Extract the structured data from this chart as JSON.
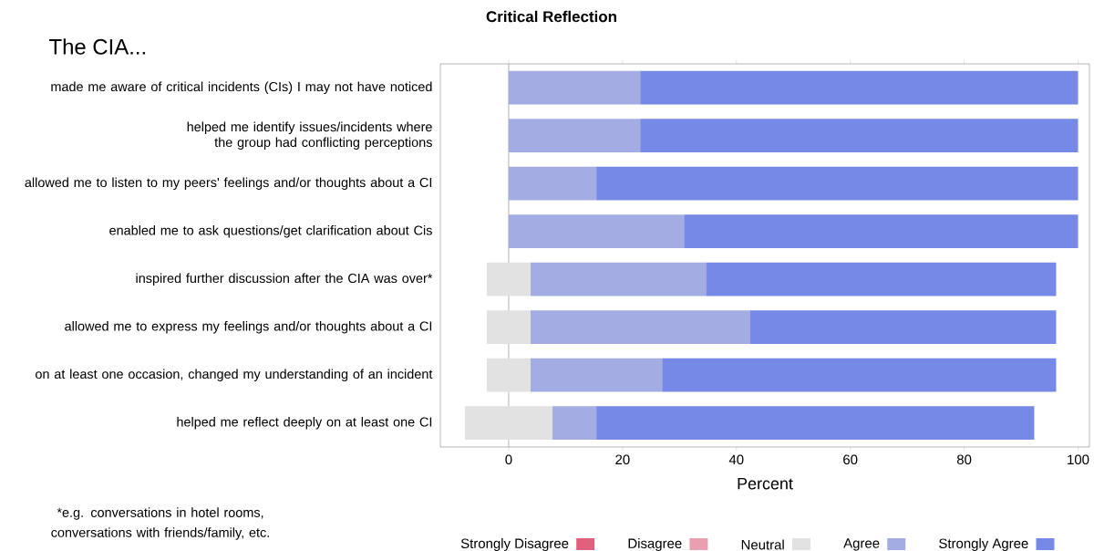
{
  "chart_data": {
    "type": "bar",
    "orientation": "horizontal",
    "stacked": true,
    "title": "Critical Reflection",
    "xlabel": "Percent",
    "annotations": [
      "The CIA...",
      "*e.g. conversations in hotel rooms, conversations with friends/family, etc."
    ],
    "categories": [
      "made me aware of critical incidents (CIs) I may not have noticed",
      "helped me identify issues/incidents where the group had conflicting perceptions",
      "allowed me to listen to my peers' feelings and/or thoughts about a CI",
      "enabled me to ask questions/get clarification about Cis",
      "inspired further discussion after the CIA was over*",
      "allowed me to express my feelings and/or thoughts about a CI",
      "on at least one occasion, changed my understanding of an incident",
      "helped me reflect deeply on at least one CI"
    ],
    "series": [
      {
        "name": "Strongly Disagree",
        "color": "#e0607e",
        "values": [
          0,
          0,
          0,
          0,
          0,
          0,
          0,
          0
        ]
      },
      {
        "name": "Disagree",
        "color": "#e8a0b0",
        "values": [
          0,
          0,
          0,
          0,
          0,
          0,
          0,
          0
        ]
      },
      {
        "name": "Neutral",
        "color": "#e2e2e2",
        "values": [
          0,
          0,
          0,
          0,
          -3.85,
          -3.85,
          -3.85,
          -7.7
        ]
      },
      {
        "color": "#e2e2e2",
        "values": [
          0,
          0,
          0,
          0,
          3.85,
          3.85,
          3.85,
          7.7
        ]
      },
      {
        "name": "Agree",
        "color": "#a3ade4",
        "values": [
          23.1,
          23.1,
          15.4,
          30.8,
          30.8,
          38.5,
          23.1,
          7.7
        ]
      },
      {
        "name": "Strongly Agree",
        "color": "#7689e6",
        "values": [
          76.9,
          76.9,
          84.6,
          69.2,
          61.5,
          53.8,
          69.2,
          76.9
        ]
      }
    ],
    "xlim": [
      -12,
      102
    ],
    "xticks": [
      0,
      20,
      40,
      60,
      80,
      100
    ],
    "ref_lines": [
      {
        "axis": "x",
        "value": 0,
        "color": "#a0a0a0"
      }
    ],
    "legend": "bottom"
  }
}
